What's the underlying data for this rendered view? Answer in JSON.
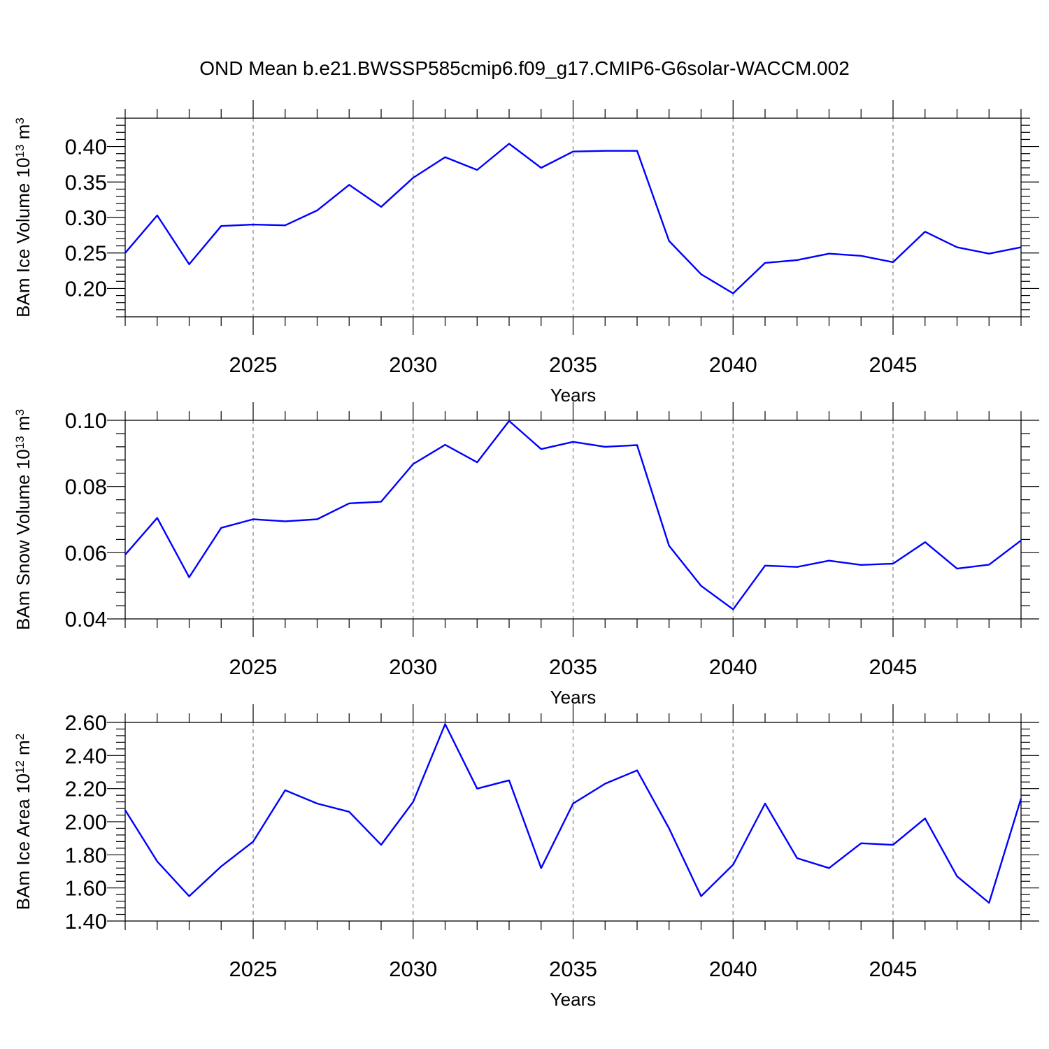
{
  "figure": {
    "title": "OND Mean b.e21.BWSSP585cmip6.f09_g17.CMIP6-G6solar-WACCM.002",
    "line_color": "#0000ff"
  },
  "chart_data": [
    {
      "type": "line",
      "title": "",
      "xlabel": "Years",
      "ylabel_text": "BAm Ice Volume 10",
      "ylabel_exp": "13",
      "ylabel_unit": " m",
      "ylabel_unit_exp": "3",
      "xlim": [
        2021,
        2049
      ],
      "ylim": [
        0.16,
        0.44
      ],
      "yticks": [
        0.2,
        0.25,
        0.3,
        0.35,
        0.4
      ],
      "ytick_labels": [
        "0.20",
        "0.25",
        "0.30",
        "0.35",
        "0.40"
      ],
      "xticks": [
        2025,
        2030,
        2035,
        2040,
        2045
      ],
      "xtick_labels": [
        "2025",
        "2030",
        "2035",
        "2040",
        "2045"
      ],
      "grid": "dashed vertical at major x ticks",
      "series": [
        {
          "x": [
            2021,
            2022,
            2023,
            2024,
            2025,
            2026,
            2027,
            2028,
            2029,
            2030,
            2031,
            2032,
            2033,
            2034,
            2035,
            2036,
            2037,
            2038,
            2039,
            2040,
            2041,
            2042,
            2043,
            2044,
            2045,
            2046,
            2047,
            2048,
            2049
          ],
          "values": [
            0.25,
            0.303,
            0.234,
            0.288,
            0.29,
            0.289,
            0.31,
            0.346,
            0.315,
            0.356,
            0.385,
            0.367,
            0.404,
            0.37,
            0.393,
            0.394,
            0.394,
            0.267,
            0.22,
            0.193,
            0.236,
            0.24,
            0.249,
            0.246,
            0.237,
            0.28,
            0.258,
            0.249,
            0.258
          ]
        }
      ]
    },
    {
      "type": "line",
      "title": "",
      "xlabel": "Years",
      "ylabel_text": "BAm Snow Volume 10",
      "ylabel_exp": "13",
      "ylabel_unit": " m",
      "ylabel_unit_exp": "3",
      "xlim": [
        2021,
        2049
      ],
      "ylim": [
        0.04,
        0.1
      ],
      "yticks": [
        0.04,
        0.06,
        0.08,
        0.1
      ],
      "ytick_labels": [
        "0.04",
        "0.06",
        "0.08",
        "0.10"
      ],
      "xticks": [
        2025,
        2030,
        2035,
        2040,
        2045
      ],
      "xtick_labels": [
        "2025",
        "2030",
        "2035",
        "2040",
        "2045"
      ],
      "grid": "dashed vertical at major x ticks",
      "series": [
        {
          "x": [
            2021,
            2022,
            2023,
            2024,
            2025,
            2026,
            2027,
            2028,
            2029,
            2030,
            2031,
            2032,
            2033,
            2034,
            2035,
            2036,
            2037,
            2038,
            2039,
            2040,
            2041,
            2042,
            2043,
            2044,
            2045,
            2046,
            2047,
            2048,
            2049
          ],
          "values": [
            0.0594,
            0.0705,
            0.0526,
            0.0675,
            0.0701,
            0.0695,
            0.0701,
            0.0749,
            0.0754,
            0.0868,
            0.0926,
            0.0873,
            0.0998,
            0.0913,
            0.0935,
            0.092,
            0.0925,
            0.0621,
            0.05,
            0.0429,
            0.0561,
            0.0557,
            0.0576,
            0.0563,
            0.0567,
            0.0632,
            0.0552,
            0.0564,
            0.0637
          ]
        }
      ]
    },
    {
      "type": "line",
      "title": "",
      "xlabel": "Years",
      "ylabel_text": "BAm Ice Area 10",
      "ylabel_exp": "12",
      "ylabel_unit": " m",
      "ylabel_unit_exp": "2",
      "xlim": [
        2021,
        2049
      ],
      "ylim": [
        1.4,
        2.6
      ],
      "yticks": [
        1.4,
        1.6,
        1.8,
        2.0,
        2.2,
        2.4,
        2.6
      ],
      "ytick_labels": [
        "1.40",
        "1.60",
        "1.80",
        "2.00",
        "2.20",
        "2.40",
        "2.60"
      ],
      "xticks": [
        2025,
        2030,
        2035,
        2040,
        2045
      ],
      "xtick_labels": [
        "2025",
        "2030",
        "2035",
        "2040",
        "2045"
      ],
      "grid": "dashed vertical at major x ticks",
      "series": [
        {
          "x": [
            2021,
            2022,
            2023,
            2024,
            2025,
            2026,
            2027,
            2028,
            2029,
            2030,
            2031,
            2032,
            2033,
            2034,
            2035,
            2036,
            2037,
            2038,
            2039,
            2040,
            2041,
            2042,
            2043,
            2044,
            2045,
            2046,
            2047,
            2048,
            2049
          ],
          "values": [
            2.07,
            1.76,
            1.55,
            1.73,
            1.88,
            2.19,
            2.11,
            2.06,
            1.86,
            2.12,
            2.59,
            2.2,
            2.25,
            1.72,
            2.11,
            2.23,
            2.31,
            1.96,
            1.55,
            1.74,
            2.11,
            1.78,
            1.72,
            1.87,
            1.86,
            2.02,
            1.67,
            1.51,
            2.14
          ]
        }
      ]
    }
  ]
}
